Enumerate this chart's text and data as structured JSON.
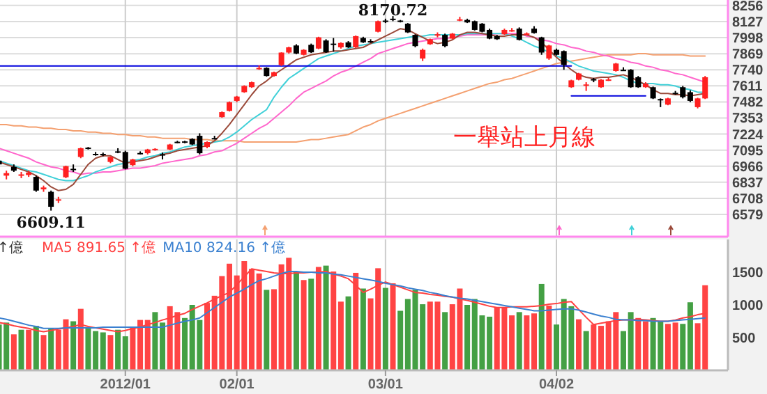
{
  "chart_data": [
    {
      "type": "candlestick",
      "categories": [
        null,
        null,
        null,
        null,
        null,
        null,
        null,
        null,
        null,
        null,
        null,
        null,
        null,
        null,
        null,
        null,
        null,
        null,
        null,
        null,
        null,
        null,
        null,
        null,
        null,
        null,
        null,
        null,
        null,
        null,
        null,
        null,
        null,
        null,
        null,
        null,
        null,
        null,
        null,
        null,
        null,
        null,
        null,
        null,
        null,
        null,
        null,
        null,
        null,
        null,
        null,
        null,
        null,
        null,
        null,
        null,
        null,
        null,
        null,
        null,
        null,
        null,
        null,
        null,
        null,
        null,
        null,
        null,
        null,
        null,
        null,
        null,
        null,
        null,
        null,
        null,
        null,
        null,
        null,
        null,
        null,
        null,
        null,
        null,
        null,
        null,
        null,
        null,
        null,
        null,
        null,
        null,
        null,
        null,
        null,
        null
      ],
      "ohlc": [
        [
          7010,
          7030,
          6960,
          6980
        ],
        [
          6890,
          6930,
          6860,
          6910
        ],
        [
          6960,
          6980,
          6920,
          6930
        ],
        [
          6890,
          6920,
          6870,
          6900
        ],
        [
          6895,
          6930,
          6880,
          6915
        ],
        [
          6880,
          6890,
          6760,
          6770
        ],
        [
          6780,
          6810,
          6760,
          6795
        ],
        [
          6760,
          6770,
          6609.11,
          6640
        ],
        [
          6690,
          6720,
          6670,
          6700
        ],
        [
          6877,
          6970,
          6870,
          6966
        ],
        [
          6945,
          6980,
          6920,
          6940
        ],
        [
          7040,
          7115,
          7030,
          7110
        ],
        [
          7115,
          7120,
          7100,
          7105
        ],
        [
          7065,
          7080,
          7050,
          7060
        ],
        [
          7065,
          7075,
          7045,
          7055
        ],
        [
          7000,
          7045,
          6990,
          7040
        ],
        [
          7085,
          7110,
          7070,
          7075
        ],
        [
          7080,
          7090,
          6940,
          6945
        ],
        [
          6975,
          7025,
          6965,
          7020
        ],
        [
          7072,
          7085,
          7060,
          7068
        ],
        [
          7070,
          7105,
          7060,
          7100
        ],
        [
          7095,
          7110,
          7090,
          7105
        ],
        [
          7062,
          7075,
          7020,
          7058
        ],
        [
          7100,
          7145,
          7095,
          7140
        ],
        [
          7162,
          7170,
          7150,
          7158
        ],
        [
          7165,
          7170,
          7150,
          7158
        ],
        [
          7185,
          7190,
          7135,
          7140
        ],
        [
          7210,
          7230,
          7060,
          7070
        ],
        [
          7120,
          7165,
          7110,
          7160
        ],
        [
          7192,
          7210,
          7180,
          7188
        ],
        [
          7360,
          7405,
          7355,
          7400
        ],
        [
          7410,
          7485,
          7405,
          7480
        ],
        [
          7490,
          7530,
          7480,
          7525
        ],
        [
          7560,
          7615,
          7555,
          7610
        ],
        [
          7600,
          7645,
          7595,
          7640
        ],
        [
          7750,
          7775,
          7740,
          7755
        ],
        [
          7755,
          7760,
          7685,
          7690
        ],
        [
          7690,
          7725,
          7685,
          7720
        ],
        [
          7778,
          7880,
          7770,
          7878
        ],
        [
          7878,
          7925,
          7870,
          7920
        ],
        [
          7935,
          7945,
          7865,
          7870
        ],
        [
          7860,
          7905,
          7855,
          7900
        ],
        [
          7940,
          7950,
          7875,
          7880
        ],
        [
          7910,
          8005,
          7905,
          8000
        ],
        [
          7975,
          7985,
          7875,
          7880
        ],
        [
          7950,
          7995,
          7885,
          7945
        ],
        [
          7920,
          7960,
          7910,
          7955
        ],
        [
          7960,
          7970,
          7915,
          7920
        ],
        [
          7920,
          8015,
          7915,
          8010
        ],
        [
          7995,
          8005,
          7955,
          7960
        ],
        [
          7970,
          7985,
          7955,
          7965
        ],
        [
          8045,
          8135,
          8040,
          8130
        ],
        [
          8135,
          8150,
          8115,
          8130
        ],
        [
          8150,
          8170.72,
          8130,
          8148
        ],
        [
          8135,
          8140,
          8120,
          8125
        ],
        [
          8110,
          8115,
          8035,
          8040
        ],
        [
          8020,
          8025,
          7920,
          7930
        ],
        [
          7830,
          7910,
          7810,
          7900
        ],
        [
          7945,
          7990,
          7940,
          7985
        ],
        [
          8020,
          8040,
          8000,
          8025
        ],
        [
          8020,
          8030,
          7920,
          7930
        ],
        [
          7990,
          8035,
          7985,
          8030
        ],
        [
          8140,
          8165,
          8130,
          8145
        ],
        [
          8140,
          8150,
          8115,
          8120
        ],
        [
          8130,
          8135,
          8055,
          8060
        ],
        [
          8110,
          8115,
          8040,
          8045
        ],
        [
          8060,
          8070,
          7985,
          7990
        ],
        [
          8010,
          8020,
          7980,
          7985
        ],
        [
          8025,
          8070,
          8020,
          8060
        ],
        [
          8050,
          8075,
          8045,
          8058
        ],
        [
          8070,
          8080,
          7975,
          7980
        ],
        [
          8030,
          8040,
          8015,
          8032
        ],
        [
          8070,
          8090,
          8030,
          8035
        ],
        [
          8000,
          8005,
          7860,
          7878
        ],
        [
          7830,
          7940,
          7820,
          7935
        ],
        [
          7900,
          7910,
          7855,
          7860
        ],
        [
          7890,
          7895,
          7740,
          7780
        ],
        [
          7600,
          7660,
          7595,
          7655
        ],
        [
          7660,
          7715,
          7655,
          7710
        ],
        [
          7615,
          7640,
          7570,
          7622
        ],
        [
          7665,
          7675,
          7640,
          7660
        ],
        [
          7600,
          7665,
          7595,
          7660
        ],
        [
          7660,
          7675,
          7650,
          7662
        ],
        [
          7730,
          7795,
          7725,
          7790
        ],
        [
          7740,
          7760,
          7730,
          7735
        ],
        [
          7740,
          7745,
          7595,
          7600
        ],
        [
          7680,
          7690,
          7595,
          7600
        ],
        [
          7600,
          7640,
          7595,
          7630
        ],
        [
          7600,
          7605,
          7505,
          7510
        ],
        [
          7505,
          7510,
          7440,
          7500
        ],
        [
          7460,
          7515,
          7455,
          7510
        ],
        [
          7555,
          7570,
          7540,
          7550
        ],
        [
          7600,
          7610,
          7510,
          7520
        ],
        [
          7560,
          7575,
          7480,
          7490
        ],
        [
          7440,
          7515,
          7430,
          7510
        ],
        [
          7510,
          7690,
          7505,
          7680
        ]
      ],
      "colors": [
        "#000000",
        "#ff2020",
        "#000000",
        "#ff2020",
        "#ff2020",
        "#000000",
        "#ff2020",
        "#000000",
        "#ff2020",
        "#ff2020",
        "#000000",
        "#ff2020",
        "#000000",
        "#000000",
        "#000000",
        "#ff2020",
        "#000000",
        "#000000",
        "#ff2020",
        "#000000",
        "#ff2020",
        "#ff2020",
        "#000000",
        "#ff2020",
        "#000000",
        "#000000",
        "#000000",
        "#000000",
        "#ff2020",
        "#000000",
        "#ff2020",
        "#ff2020",
        "#ff2020",
        "#ff2020",
        "#ff2020",
        "#ff2020",
        "#000000",
        "#ff2020",
        "#ff2020",
        "#ff2020",
        "#000000",
        "#ff2020",
        "#000000",
        "#ff2020",
        "#000000",
        "#000000",
        "#ff2020",
        "#000000",
        "#ff2020",
        "#000000",
        "#000000",
        "#ff2020",
        "#000000",
        "#000000",
        "#000000",
        "#000000",
        "#000000",
        "#ff2020",
        "#ff2020",
        "#ff2020",
        "#000000",
        "#ff2020",
        "#ff2020",
        "#000000",
        "#000000",
        "#000000",
        "#000000",
        "#000000",
        "#ff2020",
        "#ff2020",
        "#000000",
        "#ff2020",
        "#000000",
        "#000000",
        "#ff2020",
        "#000000",
        "#000000",
        "#ff2020",
        "#ff2020",
        "#ff2020",
        "#000000",
        "#ff2020",
        "#ff2020",
        "#ff2020",
        "#000000",
        "#000000",
        "#000000",
        "#ff2020",
        "#000000",
        "#000000",
        "#ff2020",
        "#000000",
        "#000000",
        "#000000",
        "#ff2020",
        "#ff2020"
      ],
      "series": [
        {
          "type": "line",
          "color": "#f4a070",
          "values": [
            7300,
            7300,
            7290,
            7290,
            7280,
            7280,
            7270,
            7270,
            7260,
            7260,
            7250,
            7250,
            7240,
            7240,
            7230,
            7230,
            7220,
            7220,
            7210,
            7210,
            7200,
            7200,
            7190,
            7190,
            7190,
            7190,
            7180,
            7180,
            7180,
            7170,
            7170,
            7170,
            7170,
            7160,
            7160,
            7160,
            7160,
            7160,
            7160,
            7160,
            7160,
            7170,
            7180,
            7180,
            7190,
            7200,
            7210,
            7220,
            7250,
            7280,
            7300,
            7330,
            7350,
            7370,
            7390,
            7410,
            7430,
            7450,
            7470,
            7490,
            7510,
            7530,
            7550,
            7570,
            7590,
            7610,
            7630,
            7640,
            7660,
            7670,
            7690,
            7710,
            7730,
            7750,
            7770,
            7790,
            7800,
            7810,
            7820,
            7830,
            7840,
            7850,
            7860,
            7860,
            7860,
            7860,
            7870,
            7870,
            7860,
            7860,
            7860,
            7860,
            7860,
            7850,
            7850,
            7850
          ]
        },
        {
          "type": "line",
          "color": "#ff66cc",
          "values": [
            7110,
            7090,
            7070,
            7050,
            7030,
            7000,
            6980,
            6960,
            6950,
            6930,
            6920,
            6900,
            6910,
            6910,
            6920,
            6920,
            6930,
            6940,
            6950,
            6950,
            6960,
            6970,
            6990,
            7000,
            7010,
            7020,
            7030,
            7050,
            7060,
            7080,
            7090,
            7120,
            7150,
            7190,
            7230,
            7270,
            7300,
            7350,
            7400,
            7450,
            7510,
            7560,
            7590,
            7620,
            7650,
            7690,
            7720,
            7740,
            7770,
            7800,
            7830,
            7870,
            7890,
            7910,
            7930,
            7950,
            7960,
            7970,
            7980,
            7990,
            7990,
            8000,
            8010,
            8020,
            8020,
            8020,
            8020,
            8030,
            8030,
            8030,
            8030,
            8010,
            8000,
            7980,
            7970,
            7950,
            7940,
            7920,
            7910,
            7890,
            7880,
            7860,
            7850,
            7830,
            7820,
            7800,
            7790,
            7770,
            7760,
            7740,
            7730,
            7710,
            7700,
            7680,
            7660,
            7640
          ]
        },
        {
          "type": "line",
          "color": "#40d0d8",
          "values": [
            7010,
            6990,
            6970,
            6950,
            6930,
            6920,
            6900,
            6880,
            6860,
            6850,
            6850,
            6870,
            6890,
            6920,
            6940,
            6960,
            6980,
            6990,
            7010,
            7020,
            7040,
            7050,
            7070,
            7080,
            7100,
            7120,
            7130,
            7140,
            7150,
            7160,
            7170,
            7200,
            7240,
            7290,
            7340,
            7380,
            7420,
            7520,
            7600,
            7670,
            7710,
            7750,
            7790,
            7830,
            7850,
            7870,
            7890,
            7910,
            7930,
            7940,
            7950,
            7960,
            7970,
            7980,
            7990,
            8000,
            8010,
            8010,
            8020,
            8020,
            8020,
            8020,
            8020,
            8030,
            8030,
            8030,
            8030,
            8030,
            8030,
            8010,
            7990,
            7960,
            7930,
            7910,
            7880,
            7850,
            7830,
            7800,
            7770,
            7750,
            7730,
            7720,
            7710,
            7700,
            7680,
            7650,
            7630,
            7630,
            7630,
            7620,
            7620,
            7610,
            7590,
            7580,
            7560,
            7560
          ]
        },
        {
          "type": "line",
          "color": "#9b4a3a",
          "values": [
            7000,
            6980,
            6960,
            6940,
            6920,
            6890,
            6850,
            6800,
            6770,
            6780,
            6820,
            6900,
            6980,
            7030,
            7050,
            7050,
            7020,
            6990,
            7000,
            7010,
            7020,
            7040,
            7060,
            7070,
            7090,
            7100,
            7110,
            7120,
            7130,
            7170,
            7230,
            7300,
            7380,
            7460,
            7540,
            7610,
            7650,
            7700,
            7740,
            7780,
            7820,
            7840,
            7860,
            7870,
            7880,
            7890,
            7890,
            7900,
            7910,
            7920,
            7950,
            7980,
            8010,
            8040,
            8070,
            8060,
            8030,
            8000,
            7970,
            7950,
            7960,
            7980,
            8020,
            8040,
            8040,
            8030,
            8020,
            8010,
            8010,
            8020,
            8020,
            8020,
            8000,
            7960,
            7900,
            7840,
            7790,
            7740,
            7700,
            7680,
            7670,
            7680,
            7680,
            7690,
            7700,
            7680,
            7650,
            7620,
            7580,
            7550,
            7550,
            7540,
            7540,
            7530,
            7540,
            7550
          ]
        },
        {
          "type": "line",
          "color": "#0000dd",
          "values": [
            7770,
            7770,
            7770,
            7770,
            7770,
            7770,
            7770,
            7770,
            7770,
            7770,
            7770,
            7770,
            7770,
            7770,
            7770,
            7770,
            7770,
            7770,
            7770,
            7770,
            7770,
            7770,
            7770,
            7770,
            7770,
            7770,
            7770,
            7770,
            7770,
            7770,
            7770,
            7770,
            7770,
            7770,
            7770,
            7770,
            7770,
            7770,
            7770,
            7770,
            7770,
            7770,
            7770,
            7770,
            7770,
            7770,
            7770,
            7770,
            7770,
            7770,
            7770,
            7770,
            7770,
            7770,
            7770,
            7770,
            7770,
            7770,
            7770,
            7770,
            7770,
            7770,
            7770,
            7770,
            7770,
            7770,
            7770,
            7770,
            7770,
            7770,
            7770,
            7770,
            7770,
            7770,
            7770,
            7770,
            7770,
            7770,
            null,
            null,
            null,
            null,
            null,
            null,
            null,
            null,
            null,
            null,
            null,
            null,
            null,
            null,
            null,
            null,
            null,
            null
          ]
        },
        {
          "type": "line",
          "color": "#0000dd",
          "values": [
            null,
            null,
            null,
            null,
            null,
            null,
            null,
            null,
            null,
            null,
            null,
            null,
            null,
            null,
            null,
            null,
            null,
            null,
            null,
            null,
            null,
            null,
            null,
            null,
            null,
            null,
            null,
            null,
            null,
            null,
            null,
            null,
            null,
            null,
            null,
            null,
            null,
            null,
            null,
            null,
            null,
            null,
            null,
            null,
            null,
            null,
            null,
            null,
            null,
            null,
            null,
            null,
            null,
            null,
            null,
            null,
            null,
            null,
            null,
            null,
            null,
            null,
            null,
            null,
            null,
            null,
            null,
            null,
            null,
            null,
            null,
            null,
            null,
            null,
            null,
            null,
            null,
            7530,
            7530,
            7530,
            7530,
            7530,
            7530,
            7530,
            7530,
            7530,
            7530,
            7530,
            null,
            null,
            null,
            null,
            null,
            null,
            null,
            null
          ]
        }
      ],
      "annotations": [
        {
          "text": "6609.11",
          "y": 6609.11
        },
        {
          "text": "8170.72",
          "y": 8170.72
        },
        "一舉站上月線"
      ],
      "ylim": [
        6400,
        8300
      ],
      "yticks": [
        6579,
        6708,
        6837,
        6966,
        7095,
        7224,
        7353,
        7482,
        7611,
        7740,
        7869,
        7998,
        8127,
        8256
      ],
      "grid": true,
      "tick_labels": "y"
    },
    {
      "type": "bar",
      "categories": [
        null,
        null,
        null,
        null,
        null,
        null,
        null,
        null,
        null,
        null,
        null,
        null,
        null,
        null,
        null,
        null,
        null,
        "2012/01",
        null,
        null,
        null,
        null,
        null,
        null,
        null,
        null,
        null,
        null,
        null,
        null,
        null,
        null,
        "02/01",
        null,
        null,
        null,
        null,
        null,
        null,
        null,
        null,
        null,
        null,
        null,
        null,
        null,
        null,
        null,
        null,
        null,
        null,
        null,
        "03/01",
        null,
        null,
        null,
        null,
        null,
        null,
        null,
        null,
        null,
        null,
        null,
        null,
        null,
        null,
        null,
        null,
        null,
        null,
        null,
        null,
        null,
        null,
        "04/02",
        null,
        null,
        null,
        null,
        null,
        null,
        null,
        null,
        null,
        null,
        null,
        null,
        null,
        null,
        null,
        null,
        null,
        null,
        null,
        null
      ],
      "values": [
        700,
        730,
        550,
        620,
        620,
        680,
        540,
        640,
        620,
        780,
        750,
        940,
        660,
        600,
        580,
        540,
        620,
        520,
        650,
        770,
        770,
        890,
        730,
        980,
        890,
        800,
        1000,
        770,
        1030,
        1140,
        1440,
        1630,
        1450,
        1670,
        1550,
        1480,
        1230,
        1240,
        1620,
        1720,
        1510,
        1380,
        1400,
        1580,
        1600,
        1510,
        1050,
        1130,
        1490,
        1250,
        1100,
        1560,
        1260,
        1330,
        910,
        1090,
        1230,
        1010,
        1050,
        1050,
        890,
        1010,
        1250,
        1000,
        1090,
        840,
        820,
        960,
        960,
        840,
        890,
        840,
        870,
        1320,
        990,
        700,
        1090,
        980,
        780,
        600,
        700,
        680,
        750,
        890,
        600,
        890,
        800,
        750,
        800,
        750,
        710,
        730,
        710,
        1040,
        720,
        1300
      ],
      "colors": [
        "#44a044",
        "#44a044",
        "#ff4444",
        "#44a044",
        "#ff4444",
        "#44a044",
        "#ff4444",
        "#44a044",
        "#ff4444",
        "#ff4444",
        "#44a044",
        "#ff4444",
        "#44a044",
        "#44a044",
        "#44a044",
        "#ff4444",
        "#44a044",
        "#44a044",
        "#ff4444",
        "#ff4444",
        "#ff4444",
        "#44a044",
        "#44a044",
        "#ff4444",
        "#ff4444",
        "#44a044",
        "#44a044",
        "#44a044",
        "#ff4444",
        "#ff4444",
        "#ff4444",
        "#ff4444",
        "#ff4444",
        "#ff4444",
        "#ff4444",
        "#ff4444",
        "#44a044",
        "#ff4444",
        "#ff4444",
        "#ff4444",
        "#44a044",
        "#ff4444",
        "#44a044",
        "#ff4444",
        "#44a044",
        "#ff4444",
        "#ff4444",
        "#44a044",
        "#ff4444",
        "#44a044",
        "#ff4444",
        "#ff4444",
        "#44a044",
        "#ff4444",
        "#44a044",
        "#44a044",
        "#44a044",
        "#44a044",
        "#ff4444",
        "#ff4444",
        "#44a044",
        "#ff4444",
        "#ff4444",
        "#44a044",
        "#44a044",
        "#44a044",
        "#44a044",
        "#ff4444",
        "#ff4444",
        "#ff4444",
        "#44a044",
        "#ff4444",
        "#ff4444",
        "#44a044",
        "#ff4444",
        "#44a044",
        "#44a044",
        "#44a044",
        "#ff4444",
        "#44a044",
        "#ff4444",
        "#ff4444",
        "#ff4444",
        "#ff4444",
        "#44a044",
        "#44a044",
        "#ff4444",
        "#ff4444",
        "#44a044",
        "#44a044",
        "#ff4444",
        "#ff4444",
        "#44a044",
        "#44a044",
        "#ff4444",
        "#ff4444"
      ],
      "series": [
        {
          "type": "line",
          "name": "MA5 891.65 ↑億",
          "color": "#ff4040",
          "values": [
            730,
            710,
            680,
            660,
            640,
            610,
            590,
            610,
            630,
            650,
            670,
            700,
            670,
            650,
            630,
            610,
            590,
            610,
            640,
            660,
            700,
            730,
            770,
            800,
            840,
            870,
            930,
            980,
            1030,
            1090,
            1140,
            1190,
            1310,
            1430,
            1550,
            1530,
            1510,
            1490,
            1480,
            1480,
            1490,
            1490,
            1500,
            1500,
            1510,
            1470,
            1440,
            1400,
            1300,
            1190,
            1240,
            1300,
            1350,
            1310,
            1270,
            1230,
            1190,
            1180,
            1160,
            1150,
            1130,
            1120,
            1090,
            1070,
            1040,
            1010,
            980,
            960,
            960,
            970,
            970,
            970,
            980,
            990,
            1010,
            1020,
            1040,
            1050,
            930,
            810,
            700,
            720,
            740,
            760,
            770,
            770,
            780,
            770,
            760,
            750,
            750,
            770,
            800,
            820,
            850,
            870
          ]
        },
        {
          "type": "line",
          "name": "MA10 824.16 ↑億",
          "color": "#3a80d0",
          "values": [
            800,
            780,
            750,
            720,
            690,
            670,
            640,
            640,
            640,
            650,
            650,
            650,
            650,
            650,
            660,
            660,
            660,
            660,
            660,
            660,
            660,
            660,
            660,
            690,
            720,
            750,
            770,
            800,
            880,
            960,
            1040,
            1120,
            1180,
            1240,
            1310,
            1370,
            1400,
            1440,
            1480,
            1510,
            1510,
            1500,
            1500,
            1490,
            1490,
            1470,
            1460,
            1440,
            1420,
            1400,
            1380,
            1360,
            1330,
            1310,
            1290,
            1260,
            1240,
            1220,
            1190,
            1170,
            1140,
            1120,
            1100,
            1090,
            1070,
            1050,
            1030,
            1010,
            990,
            970,
            950,
            930,
            910,
            910,
            920,
            930,
            940,
            940,
            920,
            890,
            860,
            830,
            810,
            780,
            770,
            770,
            760,
            760,
            750,
            750,
            750,
            760,
            770,
            780,
            790,
            800
          ]
        }
      ],
      "annotations": [
        "↑億"
      ],
      "legend": "top left",
      "ylim": [
        0,
        2000
      ],
      "yticks": [
        500,
        1000,
        1500
      ],
      "grid": "x"
    }
  ]
}
